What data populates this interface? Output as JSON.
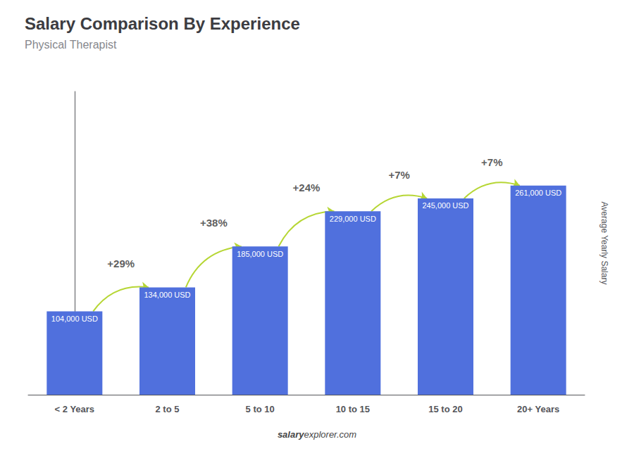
{
  "chart_data": {
    "type": "bar",
    "title": "Salary Comparison By Experience",
    "subtitle": "Physical Therapist",
    "ylabel": "Average Yearly Salary",
    "categories": [
      "< 2 Years",
      "2 to 5",
      "5 to 10",
      "10 to 15",
      "15 to 20",
      "20+ Years"
    ],
    "values": [
      104000,
      134000,
      185000,
      229000,
      245000,
      261000
    ],
    "value_labels": [
      "104,000 USD",
      "134,000 USD",
      "185,000 USD",
      "229,000 USD",
      "245,000 USD",
      "261,000 USD"
    ],
    "data_labels": true,
    "ylim": [
      0,
      378450
    ],
    "tick_labels": "x",
    "grid": false,
    "annotations": [
      {
        "text": "+29%",
        "from": "< 2 Years",
        "to": "2 to 5"
      },
      {
        "text": "+38%",
        "from": "2 to 5",
        "to": "5 to 10"
      },
      {
        "text": "+24%",
        "from": "5 to 10",
        "to": "10 to 15"
      },
      {
        "text": "+7%",
        "from": "10 to 15",
        "to": "15 to 20"
      },
      {
        "text": "+7%",
        "from": "15 to 20",
        "to": "20+ Years"
      }
    ],
    "source": {
      "bold": "salary",
      "regular": "explorer.com"
    }
  }
}
